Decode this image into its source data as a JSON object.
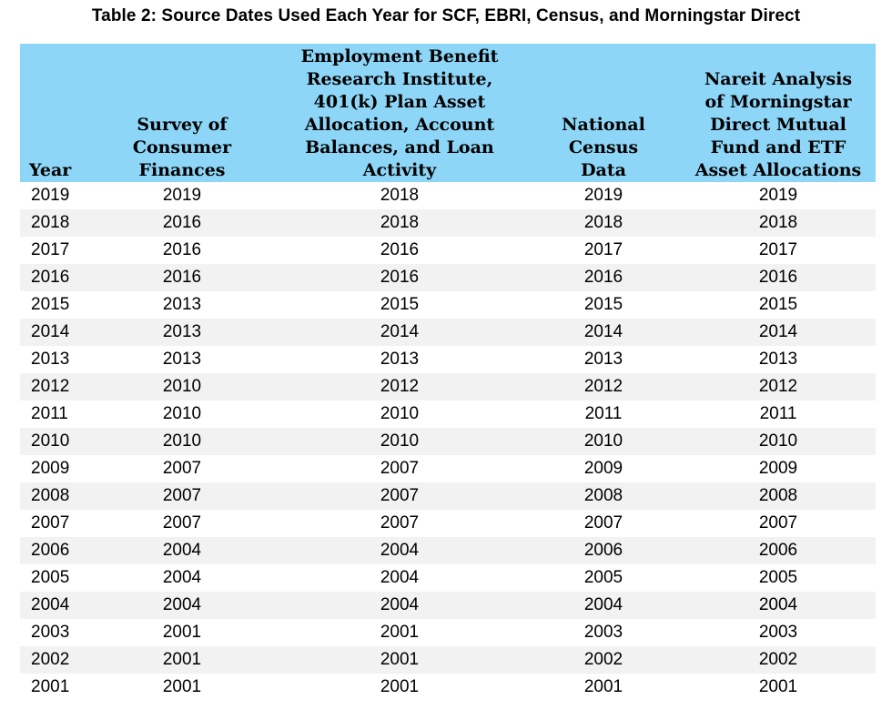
{
  "title": "Table 2: Source Dates Used Each Year for SCF, EBRI, Census, and Morningstar Direct",
  "headers": {
    "year": [
      "Year"
    ],
    "scf": [
      "Survey of",
      "Consumer",
      "Finances"
    ],
    "ebri": [
      "Employment Benefit",
      "Research Institute,",
      "401(k) Plan Asset",
      "Allocation, Account",
      "Balances, and Loan",
      "Activity"
    ],
    "census": [
      "National",
      "Census",
      "Data"
    ],
    "morningstar": [
      "Nareit Analysis",
      "of Morningstar",
      "Direct Mutual",
      "Fund and ETF",
      "Asset Allocations"
    ]
  },
  "rows": [
    [
      "2019",
      "2019",
      "2018",
      "2019",
      "2019"
    ],
    [
      "2018",
      "2016",
      "2018",
      "2018",
      "2018"
    ],
    [
      "2017",
      "2016",
      "2016",
      "2017",
      "2017"
    ],
    [
      "2016",
      "2016",
      "2016",
      "2016",
      "2016"
    ],
    [
      "2015",
      "2013",
      "2015",
      "2015",
      "2015"
    ],
    [
      "2014",
      "2013",
      "2014",
      "2014",
      "2014"
    ],
    [
      "2013",
      "2013",
      "2013",
      "2013",
      "2013"
    ],
    [
      "2012",
      "2010",
      "2012",
      "2012",
      "2012"
    ],
    [
      "2011",
      "2010",
      "2010",
      "2011",
      "2011"
    ],
    [
      "2010",
      "2010",
      "2010",
      "2010",
      "2010"
    ],
    [
      "2009",
      "2007",
      "2007",
      "2009",
      "2009"
    ],
    [
      "2008",
      "2007",
      "2007",
      "2008",
      "2008"
    ],
    [
      "2007",
      "2007",
      "2007",
      "2007",
      "2007"
    ],
    [
      "2006",
      "2004",
      "2004",
      "2006",
      "2006"
    ],
    [
      "2005",
      "2004",
      "2004",
      "2005",
      "2005"
    ],
    [
      "2004",
      "2004",
      "2004",
      "2004",
      "2004"
    ],
    [
      "2003",
      "2001",
      "2001",
      "2003",
      "2003"
    ],
    [
      "2002",
      "2001",
      "2001",
      "2002",
      "2002"
    ],
    [
      "2001",
      "2001",
      "2001",
      "2001",
      "2001"
    ]
  ],
  "colors": {
    "header_bg": "#8ed6f7",
    "stripe_bg": "#f2f2f2",
    "row_bg": "#ffffff"
  }
}
